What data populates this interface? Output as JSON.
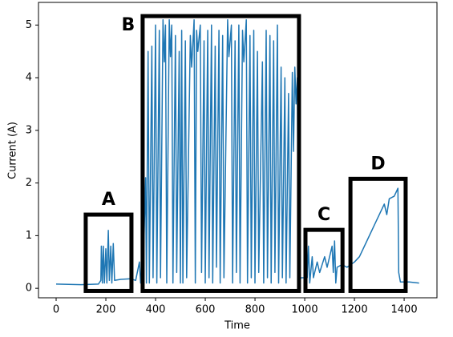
{
  "chart_data": {
    "type": "line",
    "xlabel": "Time",
    "ylabel": "Current (A)",
    "xlim": [
      -71,
      1532
    ],
    "ylim": [
      -0.18,
      5.43
    ],
    "xticks": [
      0,
      200,
      400,
      600,
      800,
      1000,
      1200,
      1400
    ],
    "yticks": [
      0,
      1,
      2,
      3,
      4,
      5
    ],
    "series": [
      {
        "color": "#1f77b4",
        "x": [
          0,
          100,
          170,
          180,
          182,
          186,
          190,
          194,
          200,
          204,
          210,
          214,
          220,
          224,
          230,
          235,
          260,
          300,
          320,
          335,
          340,
          350,
          360,
          363,
          370,
          375,
          385,
          390,
          400,
          405,
          415,
          420,
          430,
          435,
          440,
          445,
          455,
          460,
          465,
          470,
          480,
          485,
          495,
          500,
          505,
          510,
          520,
          525,
          540,
          545,
          555,
          560,
          565,
          570,
          580,
          585,
          595,
          600,
          610,
          615,
          625,
          630,
          640,
          645,
          655,
          660,
          670,
          675,
          690,
          695,
          705,
          710,
          720,
          725,
          735,
          740,
          750,
          755,
          765,
          770,
          780,
          785,
          795,
          800,
          810,
          815,
          830,
          835,
          845,
          850,
          860,
          865,
          875,
          880,
          890,
          895,
          905,
          910,
          920,
          925,
          935,
          940,
          950,
          955,
          960,
          965,
          970,
          975,
          985,
          1010,
          1015,
          1020,
          1030,
          1035,
          1050,
          1060,
          1080,
          1090,
          1110,
          1115,
          1120,
          1125,
          1130,
          1150,
          1170,
          1200,
          1220,
          1250,
          1280,
          1300,
          1320,
          1330,
          1340,
          1360,
          1370,
          1375,
          1378,
          1385,
          1420,
          1460
        ],
        "values": [
          0.08,
          0.07,
          0.08,
          0.15,
          0.8,
          0.1,
          0.8,
          0.1,
          0.75,
          0.1,
          1.1,
          0.15,
          0.8,
          0.1,
          0.85,
          0.15,
          0.17,
          0.18,
          0.15,
          0.5,
          0.1,
          0.3,
          2.1,
          0.1,
          4.5,
          0.1,
          4.6,
          0.2,
          5.0,
          0.1,
          4.9,
          0.2,
          5.1,
          4.3,
          5.0,
          0.1,
          5.1,
          4.4,
          5.0,
          0.1,
          4.8,
          0.3,
          4.5,
          0.1,
          4.9,
          0.1,
          4.7,
          0.2,
          4.8,
          4.2,
          5.1,
          0.1,
          4.9,
          4.5,
          5.0,
          0.3,
          4.7,
          0.1,
          4.9,
          0.2,
          5.0,
          0.1,
          4.6,
          0.4,
          4.9,
          0.1,
          4.8,
          0.2,
          5.1,
          4.4,
          5.0,
          0.1,
          4.7,
          0.3,
          5.0,
          0.1,
          4.9,
          4.3,
          5.1,
          0.1,
          4.8,
          0.2,
          4.9,
          0.1,
          4.5,
          0.3,
          4.3,
          0.1,
          4.9,
          0.2,
          4.8,
          0.1,
          4.7,
          0.3,
          5.0,
          0.1,
          4.2,
          0.2,
          4.0,
          0.1,
          3.7,
          0.2,
          4.1,
          2.6,
          4.2,
          3.5,
          4.0,
          0.1,
          0.2,
          0.2,
          0.8,
          0.1,
          0.6,
          0.2,
          0.5,
          0.3,
          0.6,
          0.4,
          0.8,
          0.3,
          0.9,
          0.1,
          0.4,
          0.45,
          0.4,
          0.5,
          0.6,
          0.9,
          1.2,
          1.4,
          1.6,
          1.4,
          1.7,
          1.75,
          1.85,
          1.9,
          0.3,
          0.12,
          0.12,
          0.1
        ]
      }
    ],
    "annotations": [
      {
        "label": "A",
        "x": [
          119,
          303
        ],
        "y": [
          -0.05,
          1.4
        ]
      },
      {
        "label": "B",
        "x": [
          348,
          977
        ],
        "y": [
          -0.05,
          5.17
        ]
      },
      {
        "label": "C",
        "x": [
          1003,
          1152
        ],
        "y": [
          -0.05,
          1.11
        ]
      },
      {
        "label": "D",
        "x": [
          1184,
          1406
        ],
        "y": [
          -0.05,
          2.08
        ]
      }
    ]
  }
}
